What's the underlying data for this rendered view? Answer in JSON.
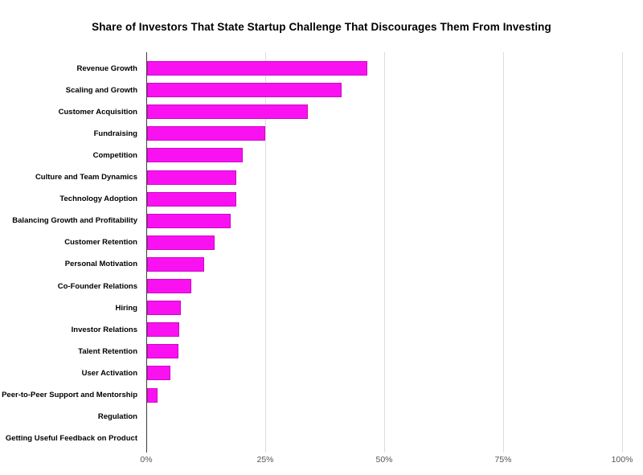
{
  "chart_data": {
    "type": "bar",
    "orientation": "horizontal",
    "title": "Share of Investors That State Startup Challenge That Discourages Them From Investing",
    "categories": [
      "Revenue Growth",
      "Scaling and Growth",
      "Customer Acquisition",
      "Fundraising",
      "Competition",
      "Culture and Team Dynamics",
      "Technology Adoption",
      "Balancing Growth and Profitability",
      "Customer Retention",
      "Personal Motivation",
      "Co-Founder Relations",
      "Hiring",
      "Investor Relations",
      "Talent Retention",
      "User Activation",
      "Peer-to-Peer Support and Mentorship",
      "Regulation",
      "Getting Useful Feedback on Product"
    ],
    "values": [
      46.5,
      41,
      34,
      25,
      20.3,
      19,
      19,
      17.7,
      14.3,
      12.1,
      9.5,
      7.2,
      6.9,
      6.7,
      5,
      2.4,
      0,
      0
    ],
    "unit": "%",
    "xlabel": "",
    "ylabel": "",
    "xlim": [
      0,
      100
    ],
    "x_tick_values": [
      0,
      25,
      50,
      75,
      100
    ],
    "x_tick_labels": [
      "0%",
      "25%",
      "50%",
      "75%",
      "100%"
    ],
    "grid": true,
    "legend": false,
    "colors": {
      "bar_fill": "#fa11f2",
      "bar_border": "#cc0ac4",
      "gridline": "#dddddd",
      "axis_line": "#3b3b3b",
      "tick_text": "#555555",
      "label_text": "#000000",
      "background": "#ffffff"
    }
  }
}
